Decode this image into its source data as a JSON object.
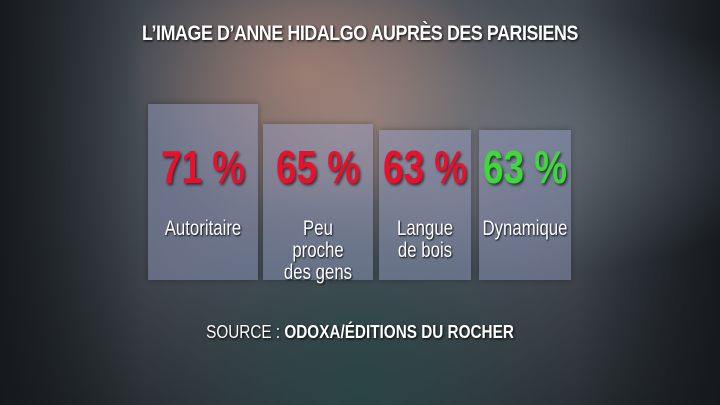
{
  "title": "L’IMAGE D’ANNE HIDALGO AUPRÈS DES PARISIENS",
  "source_label": "SOURCE :",
  "source_value": "ODOXA/ÉDITIONS DU ROCHER",
  "colors": {
    "negative": "#e8102a",
    "positive": "#3fd83a"
  },
  "chart_data": {
    "type": "bar",
    "title": "L’IMAGE D’ANNE HIDALGO AUPRÈS DES PARISIENS",
    "categories": [
      "Autoritaire",
      "Peu proche des gens",
      "Langue de bois",
      "Dynamique"
    ],
    "values": [
      71,
      65,
      63,
      63
    ],
    "value_labels": [
      "71 %",
      "65 %",
      "63 %",
      "63 %"
    ],
    "value_colors": [
      "#e8102a",
      "#e8102a",
      "#e8102a",
      "#3fd83a"
    ]
  }
}
